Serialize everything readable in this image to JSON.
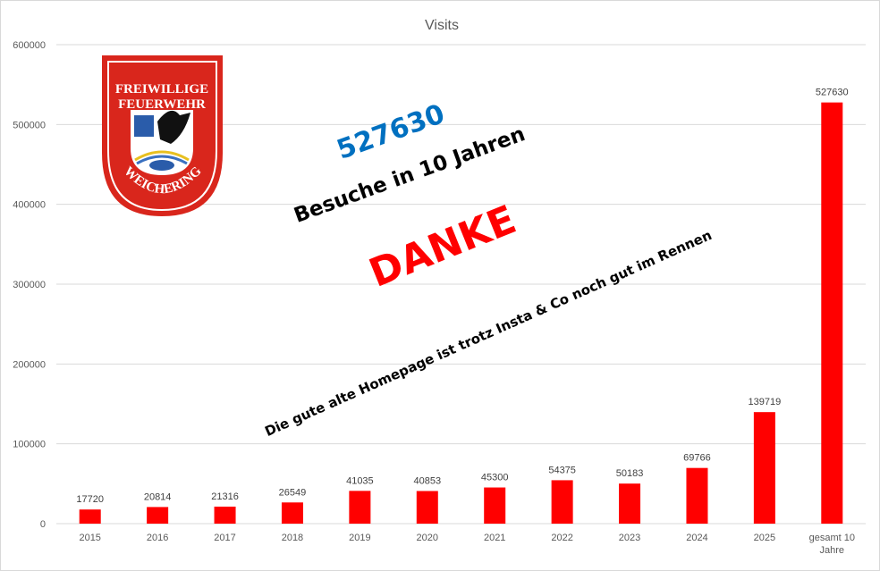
{
  "chart_data": {
    "type": "bar",
    "title": "Visits",
    "categories": [
      "2015",
      "2016",
      "2017",
      "2018",
      "2019",
      "2020",
      "2021",
      "2022",
      "2023",
      "2024",
      "2025",
      "gesamt 10 Jahre"
    ],
    "values": [
      17720,
      20814,
      21316,
      26549,
      41035,
      40853,
      45300,
      54375,
      50183,
      69766,
      139719,
      527630
    ],
    "data_labels": [
      "17720",
      "20814",
      "21316",
      "26549",
      "41035",
      "40853",
      "45300",
      "54375",
      "50183",
      "69766",
      "139719",
      "527630"
    ],
    "ylim": [
      0,
      600000
    ],
    "yticks": [
      0,
      100000,
      200000,
      300000,
      400000,
      500000,
      600000
    ],
    "ytick_labels": [
      "0",
      "100000",
      "200000",
      "300000",
      "400000",
      "500000",
      "600000"
    ],
    "grid": true,
    "bar_color": "#FF0000",
    "xlabel": "",
    "ylabel": ""
  },
  "annotations": {
    "total": "527630",
    "total_color": "#0070C0",
    "subtitle": "Besuche in 10 Jahren",
    "thanks": "DANKE",
    "thanks_color": "#FF0000",
    "message": "Die gute alte Homepage ist trotz Insta & Co noch gut im Rennen"
  },
  "logo": {
    "line1": "FREIWILLIGE",
    "line2": "FEUERWEHR",
    "line3": "WEICHERING",
    "color": "#D9261C"
  }
}
